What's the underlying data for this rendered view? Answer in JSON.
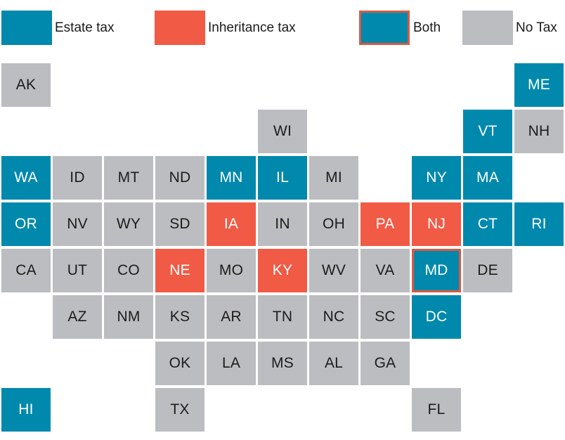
{
  "colors": {
    "estate": "#0089ad",
    "inheritance": "#f15a45",
    "none": "#bcbdc0",
    "both_fill": "#0089ad",
    "both_border": "#d85a44"
  },
  "legend": [
    {
      "key": "estate",
      "label": "Estate tax"
    },
    {
      "key": "inheritance",
      "label": "Inheritance tax"
    },
    {
      "key": "both",
      "label": "Both"
    },
    {
      "key": "none",
      "label": "No Tax"
    }
  ],
  "states": [
    {
      "code": "AK",
      "row": 0,
      "col": 0,
      "tax": "none"
    },
    {
      "code": "ME",
      "row": 0,
      "col": 10,
      "tax": "estate"
    },
    {
      "code": "WI",
      "row": 1,
      "col": 5,
      "tax": "none"
    },
    {
      "code": "VT",
      "row": 1,
      "col": 9,
      "tax": "estate"
    },
    {
      "code": "NH",
      "row": 1,
      "col": 10,
      "tax": "none"
    },
    {
      "code": "WA",
      "row": 2,
      "col": 0,
      "tax": "estate"
    },
    {
      "code": "ID",
      "row": 2,
      "col": 1,
      "tax": "none"
    },
    {
      "code": "MT",
      "row": 2,
      "col": 2,
      "tax": "none"
    },
    {
      "code": "ND",
      "row": 2,
      "col": 3,
      "tax": "none"
    },
    {
      "code": "MN",
      "row": 2,
      "col": 4,
      "tax": "estate"
    },
    {
      "code": "IL",
      "row": 2,
      "col": 5,
      "tax": "estate"
    },
    {
      "code": "MI",
      "row": 2,
      "col": 6,
      "tax": "none"
    },
    {
      "code": "NY",
      "row": 2,
      "col": 8,
      "tax": "estate"
    },
    {
      "code": "MA",
      "row": 2,
      "col": 9,
      "tax": "estate"
    },
    {
      "code": "OR",
      "row": 3,
      "col": 0,
      "tax": "estate"
    },
    {
      "code": "NV",
      "row": 3,
      "col": 1,
      "tax": "none"
    },
    {
      "code": "WY",
      "row": 3,
      "col": 2,
      "tax": "none"
    },
    {
      "code": "SD",
      "row": 3,
      "col": 3,
      "tax": "none"
    },
    {
      "code": "IA",
      "row": 3,
      "col": 4,
      "tax": "inheritance"
    },
    {
      "code": "IN",
      "row": 3,
      "col": 5,
      "tax": "none"
    },
    {
      "code": "OH",
      "row": 3,
      "col": 6,
      "tax": "none"
    },
    {
      "code": "PA",
      "row": 3,
      "col": 7,
      "tax": "inheritance"
    },
    {
      "code": "NJ",
      "row": 3,
      "col": 8,
      "tax": "inheritance"
    },
    {
      "code": "CT",
      "row": 3,
      "col": 9,
      "tax": "estate"
    },
    {
      "code": "RI",
      "row": 3,
      "col": 10,
      "tax": "estate"
    },
    {
      "code": "CA",
      "row": 4,
      "col": 0,
      "tax": "none"
    },
    {
      "code": "UT",
      "row": 4,
      "col": 1,
      "tax": "none"
    },
    {
      "code": "CO",
      "row": 4,
      "col": 2,
      "tax": "none"
    },
    {
      "code": "NE",
      "row": 4,
      "col": 3,
      "tax": "inheritance"
    },
    {
      "code": "MO",
      "row": 4,
      "col": 4,
      "tax": "none"
    },
    {
      "code": "KY",
      "row": 4,
      "col": 5,
      "tax": "inheritance"
    },
    {
      "code": "WV",
      "row": 4,
      "col": 6,
      "tax": "none"
    },
    {
      "code": "VA",
      "row": 4,
      "col": 7,
      "tax": "none"
    },
    {
      "code": "MD",
      "row": 4,
      "col": 8,
      "tax": "both"
    },
    {
      "code": "DE",
      "row": 4,
      "col": 9,
      "tax": "none"
    },
    {
      "code": "AZ",
      "row": 5,
      "col": 1,
      "tax": "none"
    },
    {
      "code": "NM",
      "row": 5,
      "col": 2,
      "tax": "none"
    },
    {
      "code": "KS",
      "row": 5,
      "col": 3,
      "tax": "none"
    },
    {
      "code": "AR",
      "row": 5,
      "col": 4,
      "tax": "none"
    },
    {
      "code": "TN",
      "row": 5,
      "col": 5,
      "tax": "none"
    },
    {
      "code": "NC",
      "row": 5,
      "col": 6,
      "tax": "none"
    },
    {
      "code": "SC",
      "row": 5,
      "col": 7,
      "tax": "none"
    },
    {
      "code": "DC",
      "row": 5,
      "col": 8,
      "tax": "estate"
    },
    {
      "code": "OK",
      "row": 6,
      "col": 3,
      "tax": "none"
    },
    {
      "code": "LA",
      "row": 6,
      "col": 4,
      "tax": "none"
    },
    {
      "code": "MS",
      "row": 6,
      "col": 5,
      "tax": "none"
    },
    {
      "code": "AL",
      "row": 6,
      "col": 6,
      "tax": "none"
    },
    {
      "code": "GA",
      "row": 6,
      "col": 7,
      "tax": "none"
    },
    {
      "code": "HI",
      "row": 7,
      "col": 0,
      "tax": "estate"
    },
    {
      "code": "TX",
      "row": 7,
      "col": 3,
      "tax": "none"
    },
    {
      "code": "FL",
      "row": 7,
      "col": 8,
      "tax": "none"
    }
  ]
}
